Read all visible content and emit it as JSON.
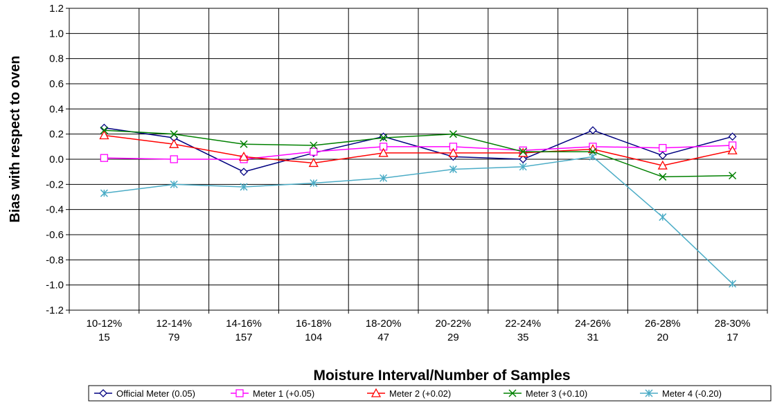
{
  "chart_data": {
    "type": "line",
    "xlabel": "Moisture Interval/Number of Samples",
    "ylabel": "Bias with respect to oven",
    "ylim": [
      -1.2,
      1.2
    ],
    "ytick_step": 0.2,
    "yticks": [
      "1.2",
      "1.0",
      "0.8",
      "0.6",
      "0.4",
      "0.2",
      "0.0",
      "-0.2",
      "-0.4",
      "-0.6",
      "-0.8",
      "-1.0",
      "-1.2"
    ],
    "grid": true,
    "legend_position": "bottom",
    "categories": [
      {
        "interval": "10-12%",
        "samples": "15"
      },
      {
        "interval": "12-14%",
        "samples": "79"
      },
      {
        "interval": "14-16%",
        "samples": "157"
      },
      {
        "interval": "16-18%",
        "samples": "104"
      },
      {
        "interval": "18-20%",
        "samples": "47"
      },
      {
        "interval": "20-22%",
        "samples": "29"
      },
      {
        "interval": "22-24%",
        "samples": "35"
      },
      {
        "interval": "24-26%",
        "samples": "31"
      },
      {
        "interval": "26-28%",
        "samples": "20"
      },
      {
        "interval": "28-30%",
        "samples": "17"
      }
    ],
    "series": [
      {
        "name": "Official Meter (0.05)",
        "color": "#000080",
        "marker": "diamond",
        "values": [
          0.25,
          0.17,
          -0.1,
          0.05,
          0.18,
          0.02,
          0.0,
          0.23,
          0.03,
          0.18
        ]
      },
      {
        "name": "Meter 1 (+0.05)",
        "color": "#ff00ff",
        "marker": "square",
        "values": [
          0.01,
          0.0,
          0.0,
          0.06,
          0.1,
          0.1,
          0.07,
          0.1,
          0.09,
          0.11
        ]
      },
      {
        "name": "Meter 2 (+0.02)",
        "color": "#ff0000",
        "marker": "triangle",
        "values": [
          0.19,
          0.12,
          0.02,
          -0.03,
          0.05,
          0.05,
          0.05,
          0.08,
          -0.05,
          0.07
        ]
      },
      {
        "name": "Meter 3 (+0.10)",
        "color": "#008000",
        "marker": "x",
        "values": [
          0.23,
          0.2,
          0.12,
          0.11,
          0.17,
          0.2,
          0.06,
          0.06,
          -0.14,
          -0.13
        ]
      },
      {
        "name": "Meter 4 (-0.20)",
        "color": "#4bacc6",
        "marker": "star",
        "values": [
          -0.27,
          -0.2,
          -0.22,
          -0.19,
          -0.15,
          -0.08,
          -0.06,
          0.02,
          -0.46,
          -0.99
        ]
      }
    ]
  }
}
